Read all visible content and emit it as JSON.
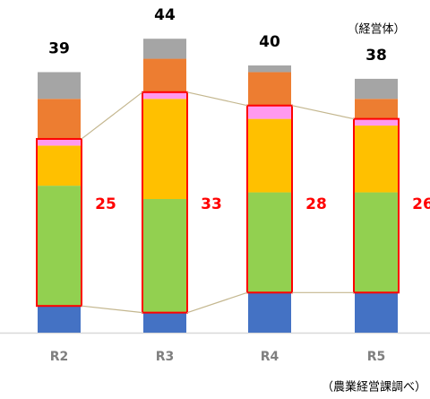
{
  "chart_data": {
    "type": "stacked_bar",
    "categories": [
      "R2",
      "R3",
      "R4",
      "R5"
    ],
    "series": [
      {
        "color": "#4472c4",
        "values": [
          4,
          3,
          6,
          6
        ]
      },
      {
        "color": "#92d050",
        "values": [
          18,
          17,
          15,
          15
        ]
      },
      {
        "color": "#ffc000",
        "values": [
          6,
          15,
          11,
          10
        ]
      },
      {
        "color": "#ff99ee",
        "values": [
          1,
          1,
          2,
          1
        ]
      },
      {
        "color": "#ed7d31",
        "values": [
          6,
          5,
          5,
          3
        ]
      },
      {
        "color": "#a5a5a5",
        "values": [
          4,
          3,
          1,
          3
        ]
      }
    ],
    "totals": [
      39,
      44,
      40,
      38
    ],
    "box_values": [
      25,
      33,
      28,
      26
    ],
    "unit_label": "（経営体）",
    "source": "（農業経営課調べ）"
  }
}
